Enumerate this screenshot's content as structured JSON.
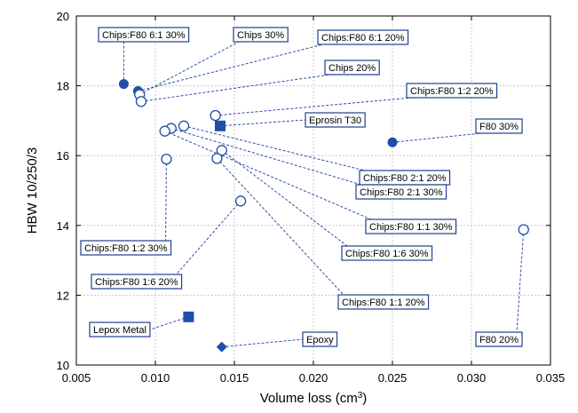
{
  "chart_data": {
    "type": "scatter",
    "xlabel": "Volume loss (cm",
    "xlabel_sup": "3",
    "xlabel_end": ")",
    "ylabel": "HBW 10/250/3",
    "xlim": [
      0.005,
      0.035
    ],
    "ylim": [
      10,
      20
    ],
    "x_ticks": [
      "0.005",
      "0.010",
      "0.015",
      "0.020",
      "0.025",
      "0.030",
      "0.035"
    ],
    "y_ticks": [
      "10",
      "12",
      "14",
      "16",
      "18",
      "20"
    ],
    "grid": true,
    "colors": {
      "marker": "#1f4ea8",
      "leader": "#2a4fa8",
      "box_border": "#1f3f8f"
    },
    "points": [
      {
        "label": "Chips:F80 6:1 30%",
        "x": 0.008,
        "y": 18.05,
        "marker": "filled-circle"
      },
      {
        "label": "Chips:F80 6:1 20%",
        "x": 0.0089,
        "y": 17.85,
        "marker": "filled-circle"
      },
      {
        "label": "Chips 30%",
        "x": 0.009,
        "y": 17.75,
        "marker": "open-circle"
      },
      {
        "label": "Chips 20%",
        "x": 0.0091,
        "y": 17.55,
        "marker": "open-circle"
      },
      {
        "label": "Chips:F80 1:2 20%",
        "x": 0.0138,
        "y": 17.15,
        "marker": "open-circle"
      },
      {
        "label": "Eprosin T30",
        "x": 0.0141,
        "y": 16.85,
        "marker": "filled-square"
      },
      {
        "label": "F80 30%",
        "x": 0.025,
        "y": 16.38,
        "marker": "filled-circle"
      },
      {
        "label": "Chips:F80 2:1 20%",
        "x": 0.0118,
        "y": 16.85,
        "marker": "open-circle"
      },
      {
        "label": "Chips:F80 2:1 30%",
        "x": 0.011,
        "y": 16.78,
        "marker": "open-circle"
      },
      {
        "label": "Chips:F80 1:1 30%",
        "x": 0.0106,
        "y": 16.7,
        "marker": "open-circle"
      },
      {
        "label": "Chips:F80 1:6 30%",
        "x": 0.0142,
        "y": 16.15,
        "marker": "open-circle"
      },
      {
        "label": "Chips:F80 1:1 20%",
        "x": 0.0139,
        "y": 15.92,
        "marker": "open-circle"
      },
      {
        "label": "Chips:F80 1:2 30%",
        "x": 0.0107,
        "y": 15.9,
        "marker": "open-circle"
      },
      {
        "label": "Chips:F80 1:6 20%",
        "x": 0.0154,
        "y": 14.7,
        "marker": "open-circle"
      },
      {
        "label": "F80 20%",
        "x": 0.0333,
        "y": 13.88,
        "marker": "open-circle"
      },
      {
        "label": "Lepox Metal",
        "x": 0.0121,
        "y": 11.38,
        "marker": "filled-square"
      },
      {
        "label": "Epoxy",
        "x": 0.0142,
        "y": 10.52,
        "marker": "filled-diamond"
      }
    ],
    "callouts": [
      {
        "text": "Chips:F80 6:1 30%",
        "point": 0
      },
      {
        "text": "Chips 30%",
        "point": 2
      },
      {
        "text": "Chips:F80 6:1 20%",
        "point": 1
      },
      {
        "text": "Chips 20%",
        "point": 3
      },
      {
        "text": "Chips:F80 1:2 20%",
        "point": 4
      },
      {
        "text": "Eprosin T30",
        "point": 5
      },
      {
        "text": "F80 30%",
        "point": 6
      },
      {
        "text": "Chips:F80 2:1 20%",
        "point": 7
      },
      {
        "text": "Chips:F80 2:1 30%",
        "point": 8
      },
      {
        "text": "Chips:F80 1:1 30%",
        "point": 9
      },
      {
        "text": "Chips:F80 1:6 30%",
        "point": 10
      },
      {
        "text": "Chips:F80 1:1 20%",
        "point": 11
      },
      {
        "text": "Chips:F80 1:2 30%",
        "point": 12
      },
      {
        "text": "Chips:F80 1:6 20%",
        "point": 13
      },
      {
        "text": "F80 20%",
        "point": 14
      },
      {
        "text": "Lepox Metal",
        "point": 15
      },
      {
        "text": "Epoxy",
        "point": 16
      }
    ]
  }
}
